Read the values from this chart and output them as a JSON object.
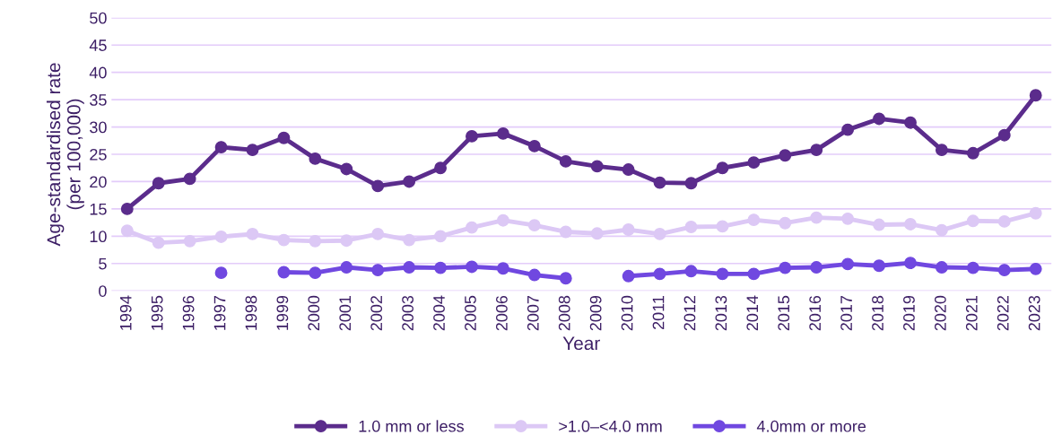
{
  "chart_data": {
    "type": "line",
    "xlabel": "Year",
    "ylabel": "Age-standardised rate\n(per 100,000)",
    "categories": [
      "1994",
      "1995",
      "1996",
      "1997",
      "1998",
      "1999",
      "2000",
      "2001",
      "2002",
      "2003",
      "2004",
      "2005",
      "2006",
      "2007",
      "2008",
      "2009",
      "2010",
      "2011",
      "2012",
      "2013",
      "2014",
      "2015",
      "2016",
      "2017",
      "2018",
      "2019",
      "2020",
      "2021",
      "2022",
      "2023"
    ],
    "series": [
      {
        "name": "1.0 mm or less",
        "color": "#5b2c8c",
        "values": [
          15.0,
          19.7,
          20.5,
          26.3,
          25.8,
          28.0,
          24.2,
          22.3,
          19.2,
          20.0,
          22.5,
          28.3,
          28.8,
          26.5,
          23.7,
          22.8,
          22.2,
          19.8,
          19.7,
          22.5,
          23.5,
          24.8,
          25.8,
          29.5,
          31.5,
          30.8,
          25.8,
          25.2,
          28.5,
          35.8
        ]
      },
      {
        "name": ">1.0–<4.0 mm",
        "color": "#dcc8f5",
        "values": [
          11.0,
          8.8,
          9.1,
          9.9,
          10.4,
          9.3,
          9.1,
          9.2,
          10.4,
          9.3,
          10.0,
          11.6,
          12.9,
          12.0,
          10.8,
          10.5,
          11.2,
          10.4,
          11.7,
          11.8,
          13.0,
          12.4,
          13.4,
          13.2,
          12.1,
          12.2,
          11.1,
          12.8,
          12.7,
          14.2
        ]
      },
      {
        "name": "4.0mm or more",
        "color": "#7048e0",
        "values": [
          null,
          null,
          null,
          3.3,
          null,
          3.4,
          3.3,
          4.3,
          3.8,
          4.3,
          4.2,
          4.4,
          4.1,
          2.9,
          2.3,
          null,
          2.7,
          3.1,
          3.6,
          3.1,
          3.1,
          4.2,
          4.3,
          4.9,
          4.6,
          5.1,
          4.3,
          4.2,
          3.8,
          4.0
        ]
      }
    ],
    "ylim": [
      0,
      50
    ],
    "yticks": [
      0,
      5,
      10,
      15,
      20,
      25,
      30,
      35,
      40,
      45,
      50
    ],
    "grid": "y",
    "legend": "bottom",
    "marker": "circle",
    "line_style": "solid"
  }
}
